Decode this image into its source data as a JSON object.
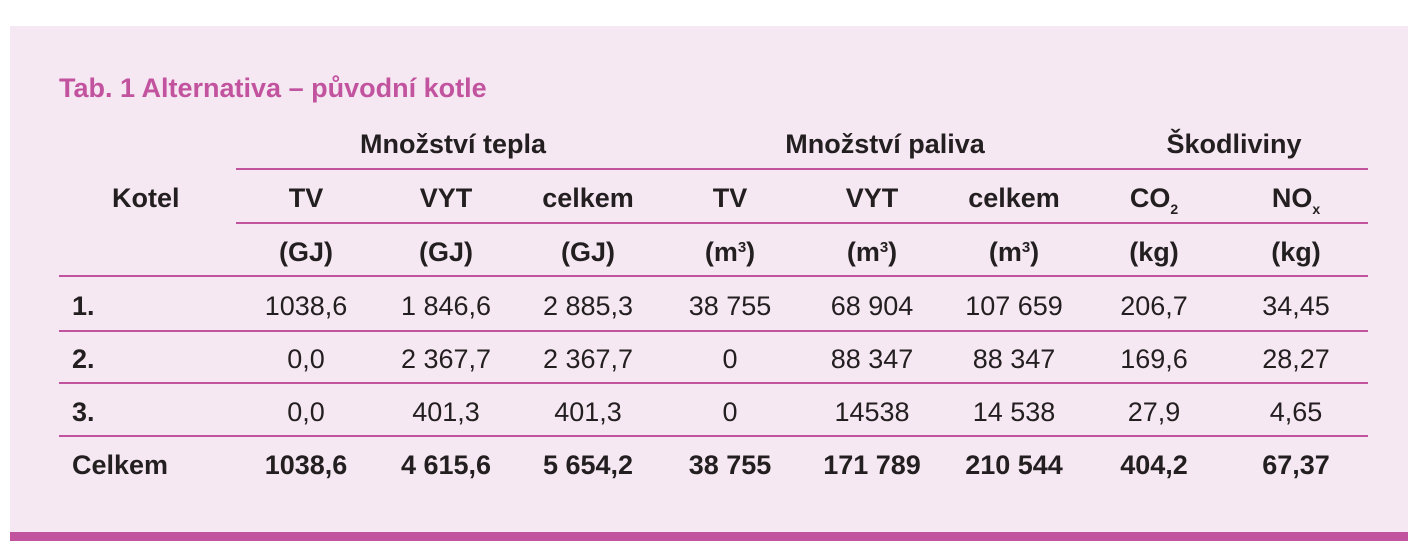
{
  "title": "Tab. 1 Alternativa – původní kotle",
  "header": {
    "row_label": "Kotel",
    "groups": [
      "Množství tepla",
      "Množství paliva",
      "Škodliviny"
    ],
    "columns": [
      {
        "name": "TV",
        "sub": "",
        "unit_pre": "(GJ)",
        "unit_sup": "",
        "unit_post": ""
      },
      {
        "name": "VYT",
        "sub": "",
        "unit_pre": "(GJ)",
        "unit_sup": "",
        "unit_post": ""
      },
      {
        "name": "celkem",
        "sub": "",
        "unit_pre": "(GJ)",
        "unit_sup": "",
        "unit_post": ""
      },
      {
        "name": "TV",
        "sub": "",
        "unit_pre": "(m",
        "unit_sup": "3",
        "unit_post": ")"
      },
      {
        "name": "VYT",
        "sub": "",
        "unit_pre": "(m",
        "unit_sup": "3",
        "unit_post": ")"
      },
      {
        "name": "celkem",
        "sub": "",
        "unit_pre": "(m",
        "unit_sup": "3",
        "unit_post": ")"
      },
      {
        "name": "CO",
        "sub": "2",
        "unit_pre": "(kg)",
        "unit_sup": "",
        "unit_post": ""
      },
      {
        "name": "NO",
        "sub": "x",
        "unit_pre": "(kg)",
        "unit_sup": "",
        "unit_post": ""
      }
    ]
  },
  "rows": [
    {
      "label": "1.",
      "values": [
        "1038,6",
        "1 846,6",
        "2 885,3",
        "38 755",
        "68 904",
        "107 659",
        "206,7",
        "34,45"
      ]
    },
    {
      "label": "2.",
      "values": [
        "0,0",
        "2 367,7",
        "2 367,7",
        "0",
        "88 347",
        "88 347",
        "169,6",
        "28,27"
      ]
    },
    {
      "label": "3.",
      "values": [
        "0,0",
        "401,3",
        "401,3",
        "0",
        "14538",
        "14 538",
        "27,9",
        "4,65"
      ]
    }
  ],
  "total": {
    "label": "Celkem",
    "values": [
      "1038,6",
      "4 615,6",
      "5 654,2",
      "38 755",
      "171 789",
      "210 544",
      "404,2",
      "67,37"
    ]
  },
  "colors": {
    "accent": "#c2549f",
    "background": "#f6e8f2",
    "text": "#231f20"
  }
}
